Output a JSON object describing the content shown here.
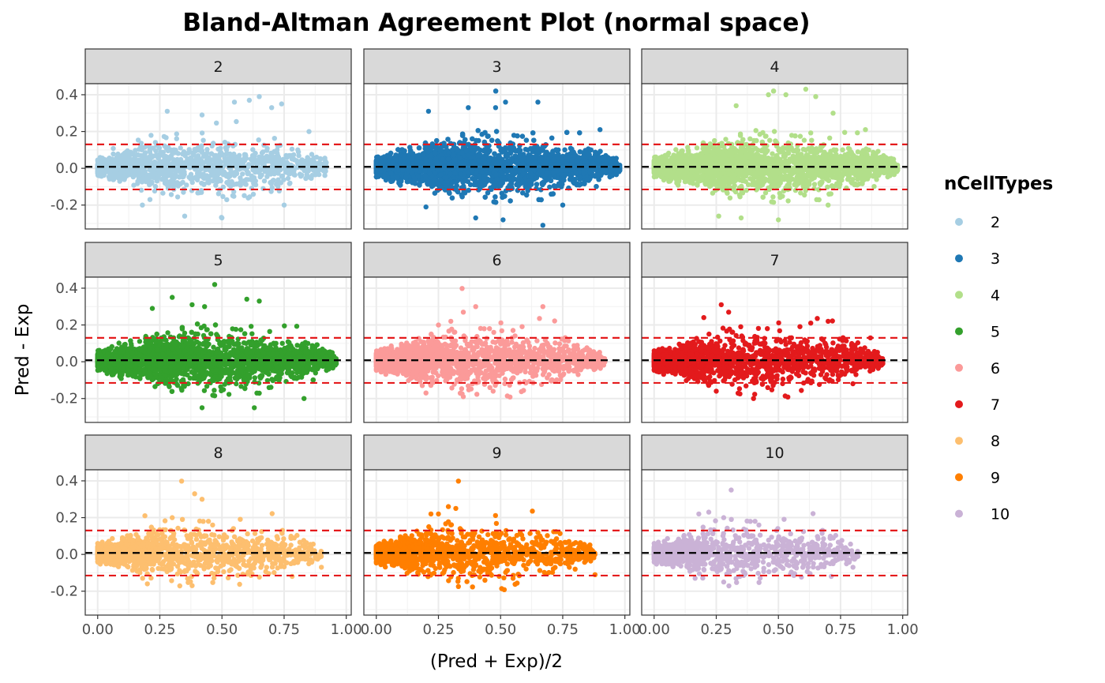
{
  "chart_data": {
    "type": "scatter",
    "title": "Bland-Altman Agreement Plot (normal space)",
    "xlabel": "(Pred + Exp)/2",
    "ylabel": "Pred - Exp",
    "xlim": [
      -0.05,
      1.02
    ],
    "ylim": [
      -0.33,
      0.46
    ],
    "x_ticks": [
      0.0,
      0.25,
      0.5,
      0.75,
      1.0
    ],
    "x_tick_labels": [
      "0.00",
      "0.25",
      "0.50",
      "0.75",
      "1.00"
    ],
    "y_ticks": [
      -0.2,
      0.0,
      0.2,
      0.4
    ],
    "y_tick_labels": [
      "-0.2",
      "0.0",
      "0.2",
      "0.4"
    ],
    "facet_layout": [
      3,
      3
    ],
    "reference_lines": {
      "mean_bias": 0.008,
      "upper_limit": 0.13,
      "lower_limit": -0.115,
      "mean_color": "#000000",
      "limit_color": "#e41a1c",
      "style": "dashed"
    },
    "grid": true,
    "legend": {
      "title": "nCellTypes",
      "position": "right",
      "entries": [
        "2",
        "3",
        "4",
        "5",
        "6",
        "7",
        "8",
        "9",
        "10"
      ]
    },
    "facets": [
      {
        "label": "2",
        "color": "#a6cee3",
        "x_range": [
          0.0,
          0.92
        ],
        "points_approx": 1400,
        "sample_points": [
          [
            0.65,
            0.39
          ],
          [
            0.61,
            0.37
          ],
          [
            0.55,
            0.36
          ],
          [
            0.74,
            0.35
          ],
          [
            0.7,
            0.33
          ],
          [
            0.28,
            0.31
          ],
          [
            0.42,
            0.29
          ],
          [
            0.85,
            0.2
          ],
          [
            0.5,
            -0.27
          ],
          [
            0.35,
            -0.26
          ],
          [
            0.18,
            -0.2
          ],
          [
            0.75,
            -0.2
          ]
        ]
      },
      {
        "label": "3",
        "color": "#1f78b4",
        "x_range": [
          0.0,
          0.98
        ],
        "points_approx": 6000,
        "sample_points": [
          [
            0.52,
            0.36
          ],
          [
            0.65,
            0.36
          ],
          [
            0.48,
            0.33
          ],
          [
            0.37,
            0.33
          ],
          [
            0.21,
            0.31
          ],
          [
            0.9,
            0.21
          ],
          [
            0.67,
            -0.31
          ],
          [
            0.51,
            -0.28
          ],
          [
            0.4,
            -0.27
          ],
          [
            0.2,
            -0.21
          ],
          [
            0.75,
            -0.2
          ]
        ]
      },
      {
        "label": "4",
        "color": "#b2df8a",
        "x_range": [
          0.0,
          0.98
        ],
        "points_approx": 3000,
        "sample_points": [
          [
            0.61,
            0.43
          ],
          [
            0.46,
            0.4
          ],
          [
            0.53,
            0.4
          ],
          [
            0.65,
            0.39
          ],
          [
            0.33,
            0.34
          ],
          [
            0.72,
            0.3
          ],
          [
            0.85,
            0.21
          ],
          [
            0.5,
            -0.28
          ],
          [
            0.35,
            -0.27
          ],
          [
            0.26,
            -0.26
          ],
          [
            0.7,
            -0.2
          ]
        ]
      },
      {
        "label": "5",
        "color": "#33a02c",
        "x_range": [
          0.0,
          0.96
        ],
        "points_approx": 3200,
        "sample_points": [
          [
            0.3,
            0.35
          ],
          [
            0.6,
            0.34
          ],
          [
            0.65,
            0.33
          ],
          [
            0.38,
            0.31
          ],
          [
            0.43,
            0.3
          ],
          [
            0.22,
            0.29
          ],
          [
            0.92,
            0.03
          ],
          [
            0.95,
            0.03
          ],
          [
            0.42,
            -0.25
          ],
          [
            0.63,
            -0.25
          ],
          [
            0.83,
            -0.2
          ]
        ]
      },
      {
        "label": "6",
        "color": "#fb9a99",
        "x_range": [
          0.0,
          0.92
        ],
        "points_approx": 2200,
        "sample_points": [
          [
            0.4,
            0.3
          ],
          [
            0.67,
            0.3
          ],
          [
            0.35,
            0.27
          ],
          [
            0.3,
            0.22
          ],
          [
            0.25,
            0.2
          ],
          [
            0.55,
            0.17
          ],
          [
            0.7,
            0.07
          ],
          [
            0.9,
            0.03
          ],
          [
            0.35,
            -0.19
          ],
          [
            0.2,
            -0.17
          ],
          [
            0.47,
            -0.16
          ]
        ]
      },
      {
        "label": "7",
        "color": "#e31a1c",
        "x_range": [
          0.0,
          0.92
        ],
        "points_approx": 1900,
        "sample_points": [
          [
            0.27,
            0.31
          ],
          [
            0.7,
            0.22
          ],
          [
            0.63,
            0.21
          ],
          [
            0.3,
            0.27
          ],
          [
            0.2,
            0.24
          ],
          [
            0.87,
            0.13
          ],
          [
            0.83,
            0.07
          ],
          [
            0.89,
            0.03
          ],
          [
            0.92,
            -0.01
          ],
          [
            0.4,
            -0.2
          ],
          [
            0.25,
            -0.16
          ]
        ]
      },
      {
        "label": "8",
        "color": "#fdbf6f",
        "x_range": [
          0.0,
          0.9
        ],
        "points_approx": 1500,
        "sample_points": [
          [
            0.39,
            0.33
          ],
          [
            0.42,
            0.3
          ],
          [
            0.19,
            0.21
          ],
          [
            0.3,
            0.2
          ],
          [
            0.6,
            0.04
          ],
          [
            0.53,
            0.01
          ],
          [
            0.63,
            -0.02
          ],
          [
            0.9,
            -0.07
          ],
          [
            0.38,
            -0.17
          ],
          [
            0.2,
            -0.16
          ]
        ]
      },
      {
        "label": "9",
        "color": "#ff7f00",
        "x_range": [
          0.0,
          0.88
        ],
        "points_approx": 1500,
        "sample_points": [
          [
            0.29,
            0.26
          ],
          [
            0.32,
            0.25
          ],
          [
            0.22,
            0.22
          ],
          [
            0.25,
            0.22
          ],
          [
            0.78,
            0.03
          ],
          [
            0.65,
            -0.02
          ],
          [
            0.73,
            -0.04
          ],
          [
            0.8,
            -0.08
          ],
          [
            0.88,
            -0.11
          ],
          [
            0.55,
            -0.13
          ],
          [
            0.33,
            -0.13
          ]
        ]
      },
      {
        "label": "10",
        "color": "#cab2d6",
        "x_range": [
          0.0,
          0.82
        ],
        "points_approx": 1100,
        "sample_points": [
          [
            0.31,
            0.35
          ],
          [
            0.22,
            0.23
          ],
          [
            0.18,
            0.22
          ],
          [
            0.28,
            0.2
          ],
          [
            0.52,
            0.07
          ],
          [
            0.57,
            -0.04
          ],
          [
            0.62,
            -0.05
          ],
          [
            0.72,
            -0.05
          ],
          [
            0.8,
            -0.07
          ],
          [
            0.28,
            -0.15
          ]
        ]
      }
    ]
  }
}
